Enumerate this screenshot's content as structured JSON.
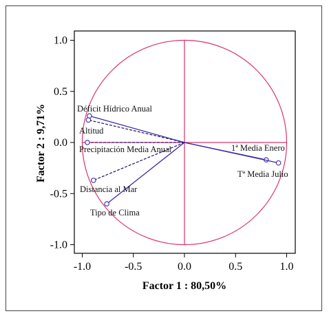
{
  "chart_data": {
    "type": "scatter",
    "subtype": "correlation-circle",
    "xlabel": "Factor 1 : 80,50%",
    "ylabel": "Factor 2 :  9,71%",
    "xlim": [
      -1.1,
      1.1
    ],
    "ylim": [
      -1.1,
      1.1
    ],
    "xticks": [
      "-1.0",
      "-0.5",
      "0.0",
      "0.5",
      "1.0"
    ],
    "yticks": [
      "1.0",
      "0.5",
      "0.0",
      "-0.5",
      "-1.0"
    ],
    "circle_radius": 1.0,
    "grid": false,
    "variables": [
      {
        "label": "Déficit Hídrico Anual",
        "x": -0.93,
        "y": 0.26
      },
      {
        "label": "Altitud",
        "x": -0.94,
        "y": 0.22
      },
      {
        "label": "Precipitación Media Anual",
        "x": -0.95,
        "y": 0.0
      },
      {
        "label": "Distancia al Mar",
        "x": -0.89,
        "y": -0.37
      },
      {
        "label": "Tipo de Clima",
        "x": -0.76,
        "y": -0.6
      },
      {
        "label": "1ª Media Enero",
        "x": 0.8,
        "y": -0.17
      },
      {
        "label": "Tª Media Julio",
        "x": 0.92,
        "y": -0.2
      }
    ],
    "colors": {
      "circle": "#d6336c",
      "vector_solid": "#3a2aa8",
      "vector_dashed": "#2a2070",
      "axis": "#d6336c"
    }
  }
}
